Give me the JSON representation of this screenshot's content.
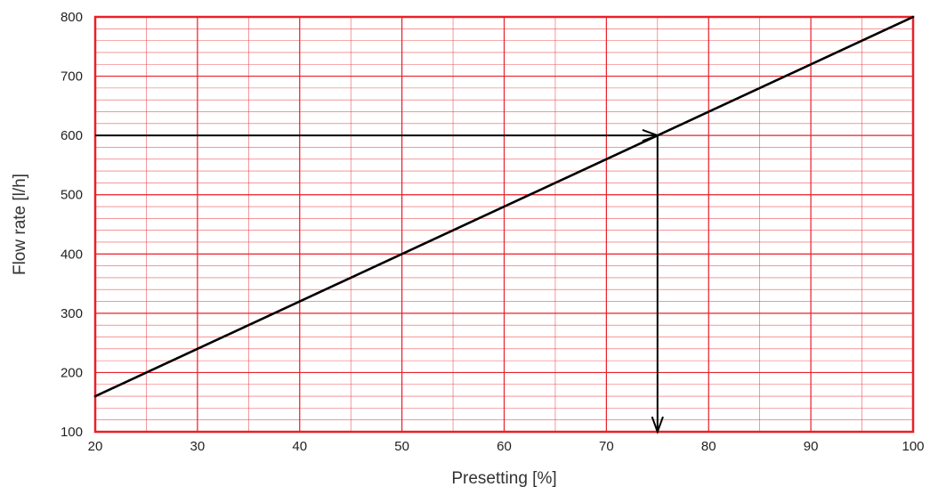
{
  "chart_data": {
    "type": "line",
    "title": "",
    "xlabel": "Presetting [%]",
    "ylabel": "Flow rate [l/h]",
    "xlim": [
      20,
      100
    ],
    "ylim": [
      100,
      800
    ],
    "x_ticks": [
      20,
      30,
      40,
      50,
      60,
      70,
      80,
      90,
      100
    ],
    "y_ticks": [
      100,
      200,
      300,
      400,
      500,
      600,
      700,
      800
    ],
    "x_tick_labels": [
      "20",
      "30",
      "40",
      "50",
      "60",
      "70",
      "80",
      "90",
      "100"
    ],
    "y_tick_labels": [
      "100",
      "200",
      "300",
      "400",
      "500",
      "600",
      "700",
      "800"
    ],
    "grid": true,
    "grid_minor_x_step": 5,
    "grid_minor_y_step": 20,
    "series": [
      {
        "x": [
          20,
          100
        ],
        "y": [
          160,
          800
        ],
        "color": "#000000"
      }
    ],
    "annotations": [
      {
        "type": "arrow",
        "from": [
          20,
          600
        ],
        "to": [
          75,
          600
        ],
        "color": "#000000"
      },
      {
        "type": "arrow",
        "from": [
          75,
          600
        ],
        "to": [
          75,
          100
        ],
        "color": "#000000"
      }
    ],
    "colors": {
      "grid": "#e8202a",
      "frame": "#e8202a",
      "line": "#000000"
    }
  }
}
